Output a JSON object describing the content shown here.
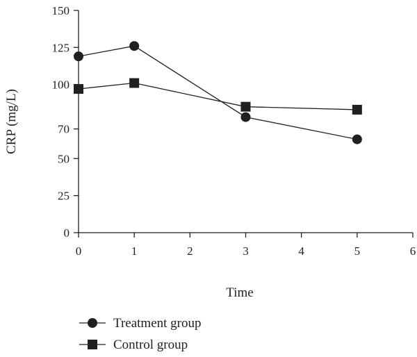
{
  "chart_data": {
    "type": "line",
    "xlabel": "Time",
    "ylabel": "CRP (mg/L)",
    "xlim": [
      0,
      6
    ],
    "ylim": [
      0,
      150
    ],
    "x_ticks": [
      "0",
      "1",
      "2",
      "3",
      "4",
      "5",
      "6"
    ],
    "y_ticks": [
      "0",
      "25",
      "50",
      "70",
      "100",
      "125",
      "150"
    ],
    "grid": false,
    "legend_position": "bottom-left",
    "series": [
      {
        "name": "Treatment group",
        "marker": "circle",
        "color": "#231f20",
        "x": [
          0,
          1,
          3,
          5
        ],
        "y": [
          119,
          126,
          78,
          63
        ]
      },
      {
        "name": "Control group",
        "marker": "square",
        "color": "#231f20",
        "x": [
          0,
          1,
          3,
          5
        ],
        "y": [
          97,
          101,
          85,
          83
        ]
      }
    ]
  }
}
